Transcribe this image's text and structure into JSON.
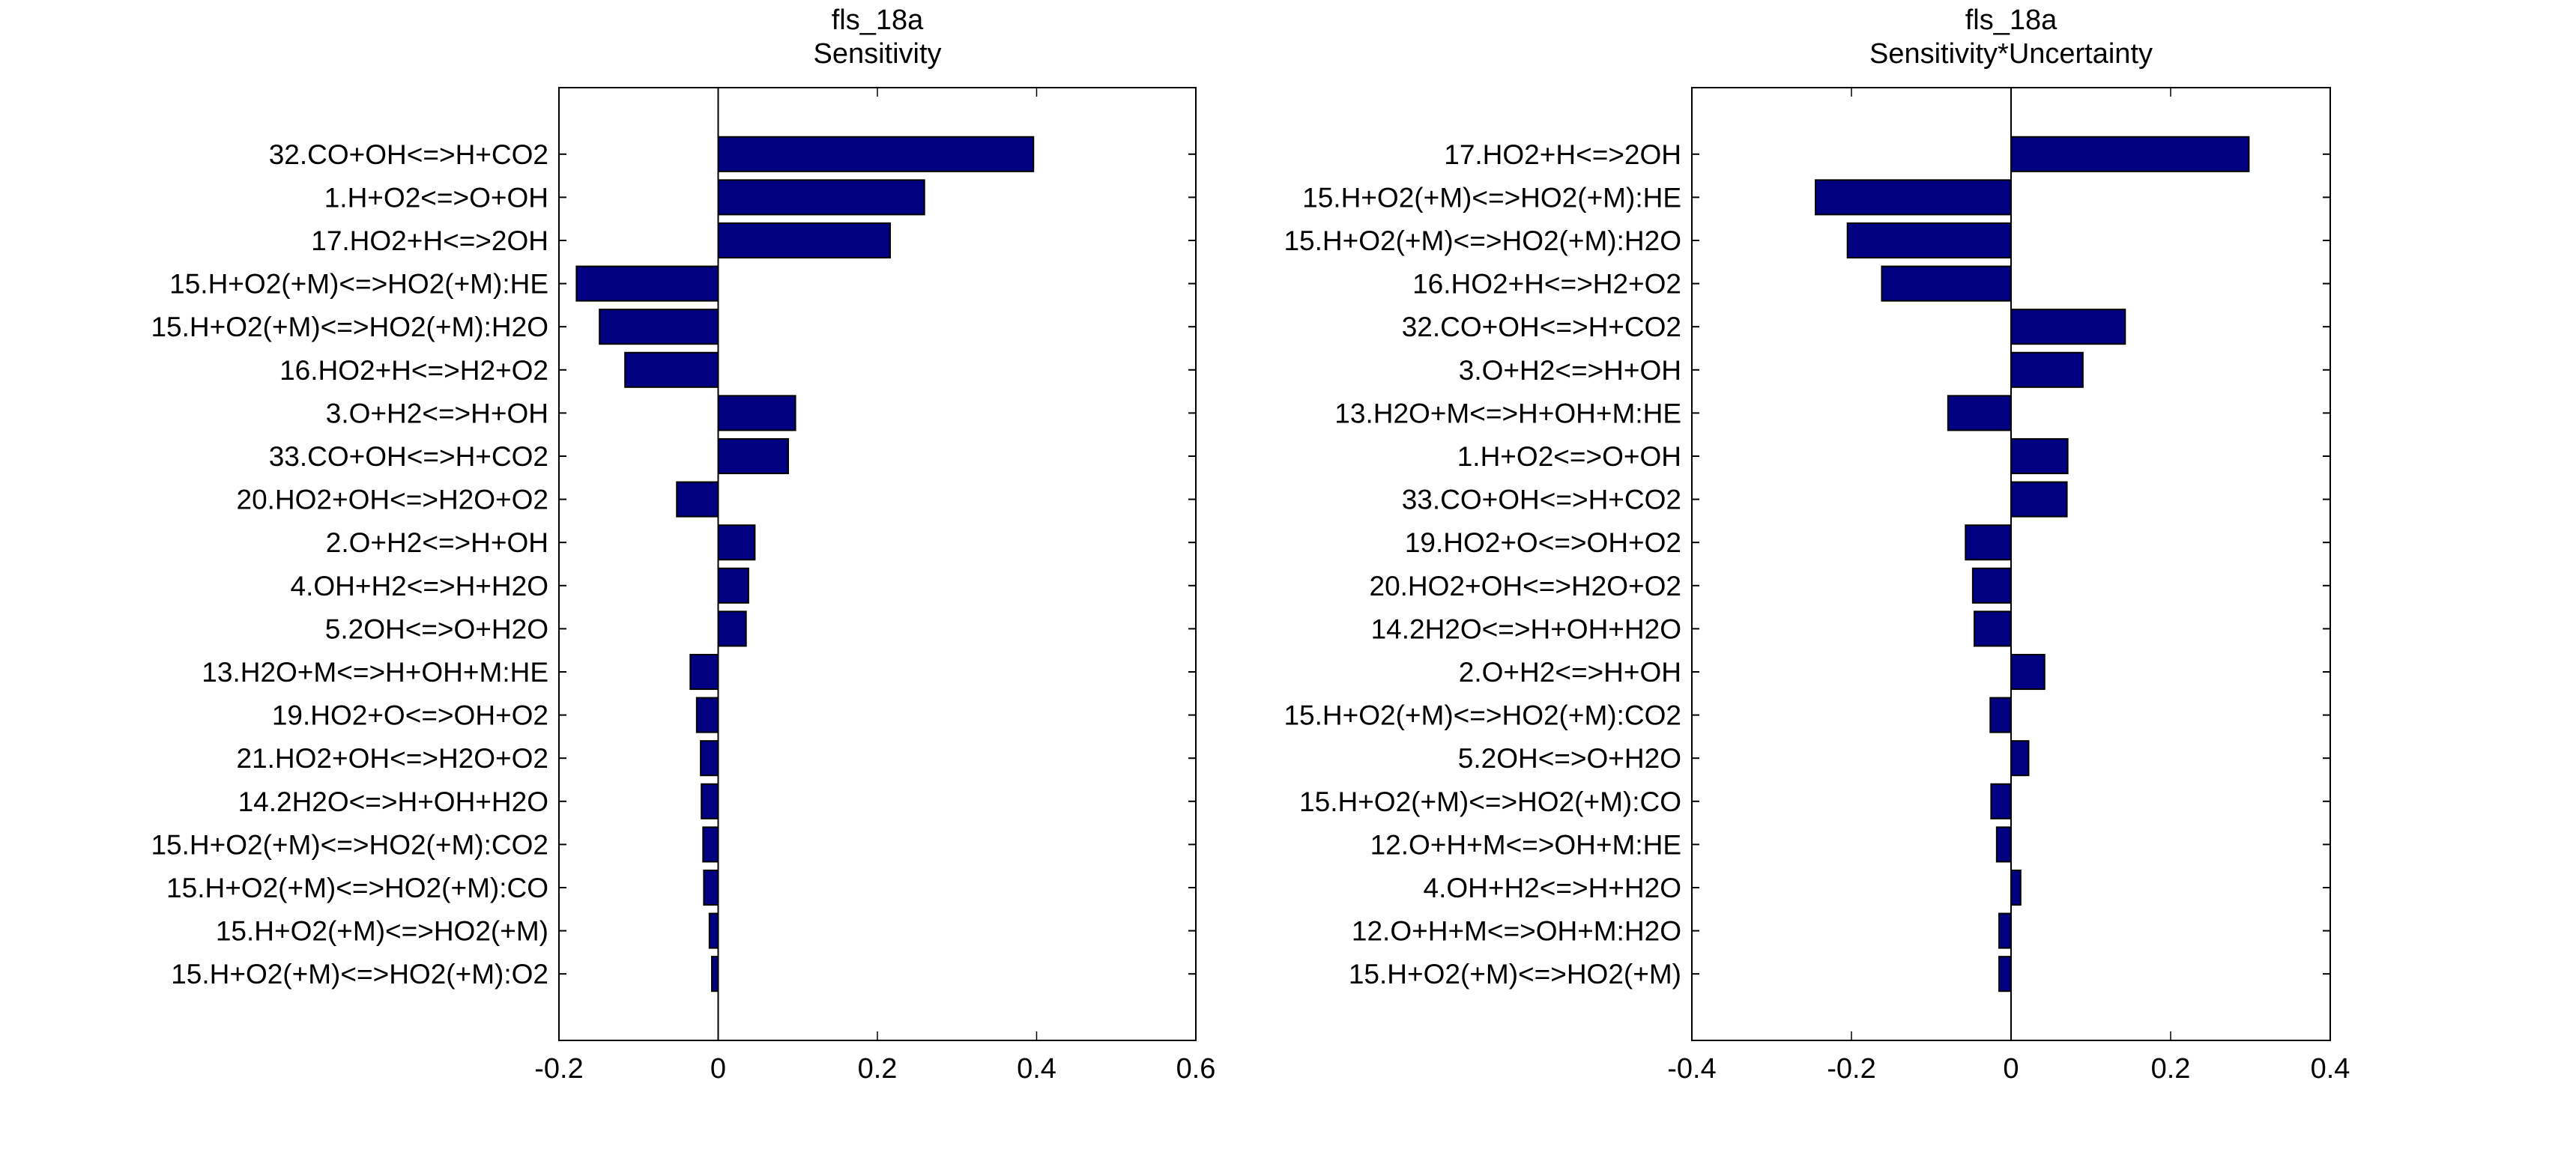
{
  "chart_data": [
    {
      "type": "bar",
      "orientation": "horizontal",
      "title": "fls_18a",
      "subtitle": "Sensitivity",
      "xlim": [
        -0.2,
        0.6
      ],
      "xticks": [
        "-0.2",
        "0",
        "0.2",
        "0.4",
        "0.6"
      ],
      "xtick_values": [
        -0.2,
        0,
        0.2,
        0.4,
        0.6
      ],
      "bar_color": "#000080",
      "categories": [
        "32.CO+OH<=>H+CO2",
        "1.H+O2<=>O+OH",
        "17.HO2+H<=>2OH",
        "15.H+O2(+M)<=>HO2(+M):HE",
        "15.H+O2(+M)<=>HO2(+M):H2O",
        "16.HO2+H<=>H2+O2",
        "3.O+H2<=>H+OH",
        "33.CO+OH<=>H+CO2",
        "20.HO2+OH<=>H2O+O2",
        "2.O+H2<=>H+OH",
        "4.OH+H2<=>H+H2O",
        "5.2OH<=>O+H2O",
        "13.H2O+M<=>H+OH+M:HE",
        "19.HO2+O<=>OH+O2",
        "21.HO2+OH<=>H2O+O2",
        "14.2H2O<=>H+OH+H2O",
        "15.H+O2(+M)<=>HO2(+M):CO2",
        "15.H+O2(+M)<=>HO2(+M):CO",
        "15.H+O2(+M)<=>HO2(+M)",
        "15.H+O2(+M)<=>HO2(+M):O2"
      ],
      "values": [
        0.396,
        0.259,
        0.216,
        -0.178,
        -0.149,
        -0.117,
        0.097,
        0.088,
        -0.052,
        0.046,
        0.038,
        0.035,
        -0.035,
        -0.027,
        -0.022,
        -0.021,
        -0.019,
        -0.018,
        -0.011,
        -0.008
      ]
    },
    {
      "type": "bar",
      "orientation": "horizontal",
      "title": "fls_18a",
      "subtitle": "Sensitivity*Uncertainty",
      "xlim": [
        -0.4,
        0.4
      ],
      "xticks": [
        "-0.4",
        "-0.2",
        "0",
        "0.2",
        "0.4"
      ],
      "xtick_values": [
        -0.4,
        -0.2,
        0,
        0.2,
        0.4
      ],
      "bar_color": "#000080",
      "categories": [
        "17.HO2+H<=>2OH",
        "15.H+O2(+M)<=>HO2(+M):HE",
        "15.H+O2(+M)<=>HO2(+M):H2O",
        "16.HO2+H<=>H2+O2",
        "32.CO+OH<=>H+CO2",
        "3.O+H2<=>H+OH",
        "13.H2O+M<=>H+OH+M:HE",
        "1.H+O2<=>O+OH",
        "33.CO+OH<=>H+CO2",
        "19.HO2+O<=>OH+O2",
        "20.HO2+OH<=>H2O+O2",
        "14.2H2O<=>H+OH+H2O",
        "2.O+H2<=>H+OH",
        "15.H+O2(+M)<=>HO2(+M):CO2",
        "5.2OH<=>O+H2O",
        "15.H+O2(+M)<=>HO2(+M):CO",
        "12.O+H+M<=>OH+M:HE",
        "4.OH+H2<=>H+H2O",
        "12.O+H+M<=>OH+M:H2O",
        "15.H+O2(+M)<=>HO2(+M)"
      ],
      "values": [
        0.298,
        -0.245,
        -0.205,
        -0.162,
        0.143,
        0.09,
        -0.079,
        0.071,
        0.07,
        -0.057,
        -0.048,
        -0.046,
        0.042,
        -0.026,
        0.022,
        -0.025,
        -0.018,
        0.012,
        -0.015,
        -0.015
      ]
    }
  ]
}
